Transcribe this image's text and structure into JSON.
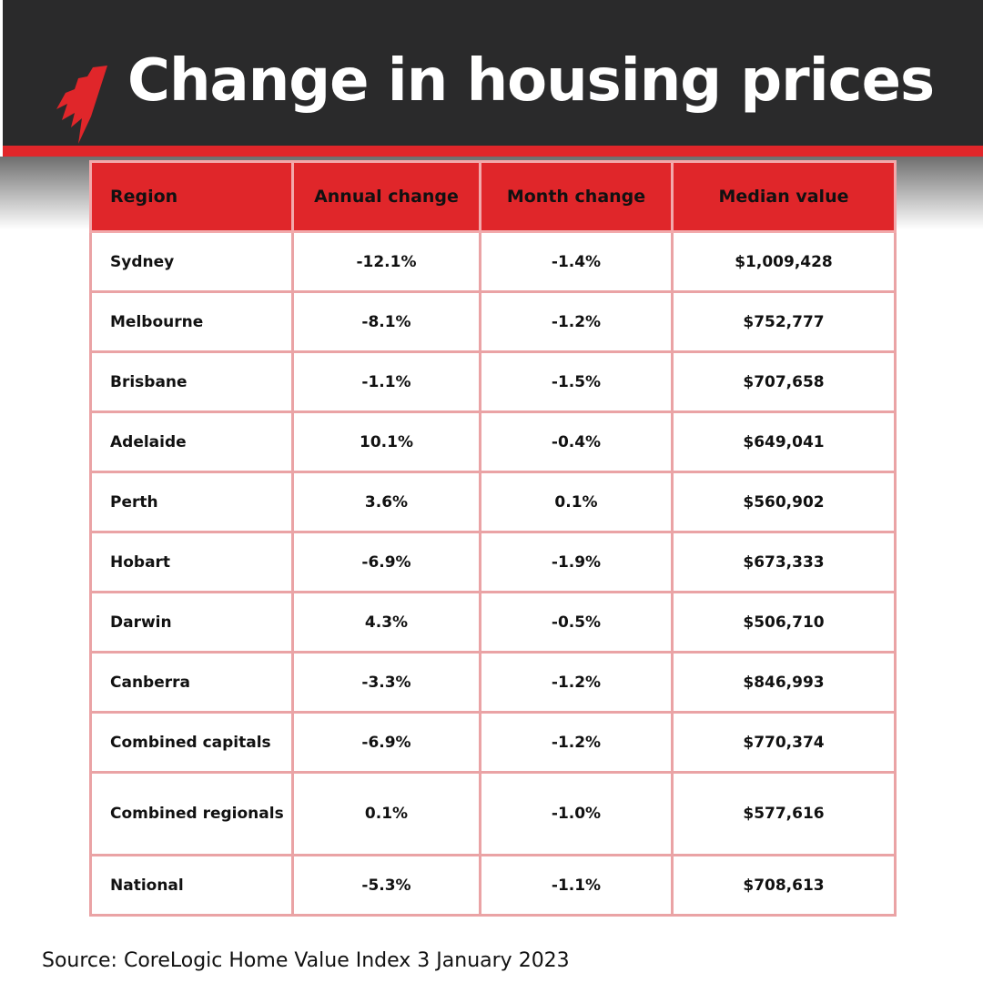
{
  "title": "Change in housing prices",
  "logo": "sbs-logo",
  "colors": {
    "header_bg": "#2a2a2b",
    "accent": "#e0262a",
    "border": "#eaa3a5"
  },
  "chart_data": {
    "type": "table",
    "title": "Change in housing prices",
    "columns": [
      "Region",
      "Annual change",
      "Month change",
      "Median value"
    ],
    "rows": [
      [
        "Sydney",
        "-12.1%",
        "-1.4%",
        "$1,009,428"
      ],
      [
        "Melbourne",
        "-8.1%",
        "-1.2%",
        "$752,777"
      ],
      [
        "Brisbane",
        "-1.1%",
        "-1.5%",
        "$707,658"
      ],
      [
        "Adelaide",
        "10.1%",
        "-0.4%",
        "$649,041"
      ],
      [
        "Perth",
        "3.6%",
        "0.1%",
        "$560,902"
      ],
      [
        "Hobart",
        "-6.9%",
        "-1.9%",
        "$673,333"
      ],
      [
        "Darwin",
        "4.3%",
        "-0.5%",
        "$506,710"
      ],
      [
        "Canberra",
        "-3.3%",
        "-1.2%",
        "$846,993"
      ],
      [
        "Combined capitals",
        "-6.9%",
        "-1.2%",
        "$770,374"
      ],
      [
        "Combined regionals",
        "0.1%",
        "-1.0%",
        "$577,616"
      ],
      [
        "National",
        "-5.3%",
        "-1.1%",
        "$708,613"
      ]
    ]
  },
  "source": "Source: CoreLogic Home Value Index 3 January 2023"
}
